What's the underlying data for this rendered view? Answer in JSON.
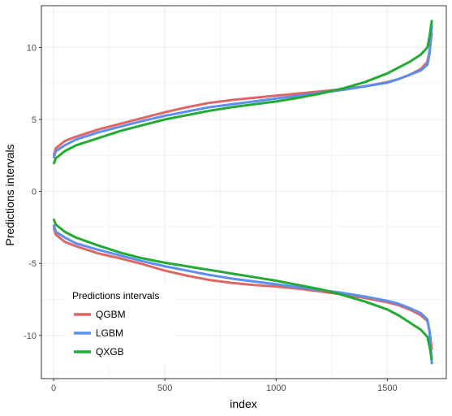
{
  "chart_data": {
    "type": "line",
    "xlabel": "index",
    "ylabel": "Predictions intervals",
    "xlim": [
      -55,
      1765
    ],
    "ylim": [
      -13.0,
      12.9
    ],
    "x_ticks": [
      0,
      500,
      1000,
      1500
    ],
    "x_tick_labels": [
      "0",
      "500",
      "1000",
      "1500"
    ],
    "y_ticks": [
      -10,
      -5,
      0,
      5,
      10
    ],
    "y_tick_labels": [
      "-10",
      "-5",
      "0",
      "5",
      "10"
    ],
    "grid": true,
    "legend": {
      "title": "Predictions intervals",
      "placement": "bottom-left",
      "entries": [
        "QGBM",
        "LGBM",
        "QXGB"
      ]
    },
    "series": [
      {
        "name": "QGBM",
        "color": "#e06666",
        "upper": {
          "x": [
            0,
            10,
            50,
            100,
            200,
            300,
            400,
            500,
            600,
            700,
            800,
            900,
            1000,
            1100,
            1200,
            1300,
            1400,
            1500,
            1550,
            1600,
            1650,
            1680,
            1690,
            1700
          ],
          "y": [
            2.5,
            3.0,
            3.5,
            3.8,
            4.3,
            4.7,
            5.1,
            5.5,
            5.85,
            6.15,
            6.35,
            6.5,
            6.65,
            6.8,
            6.95,
            7.1,
            7.3,
            7.6,
            7.8,
            8.1,
            8.5,
            9.0,
            9.8,
            11.0
          ]
        },
        "lower": {
          "x": [
            0,
            10,
            50,
            100,
            200,
            300,
            400,
            500,
            600,
            700,
            800,
            900,
            1000,
            1100,
            1200,
            1300,
            1400,
            1500,
            1550,
            1600,
            1650,
            1680,
            1690,
            1700
          ],
          "y": [
            -2.5,
            -3.0,
            -3.5,
            -3.8,
            -4.3,
            -4.65,
            -5.05,
            -5.5,
            -5.85,
            -6.15,
            -6.35,
            -6.5,
            -6.6,
            -6.75,
            -6.95,
            -7.15,
            -7.4,
            -7.7,
            -7.9,
            -8.2,
            -8.6,
            -9.0,
            -9.7,
            -11.0
          ]
        }
      },
      {
        "name": "LGBM",
        "color": "#5b8ff0",
        "upper": {
          "x": [
            0,
            10,
            50,
            100,
            200,
            300,
            400,
            500,
            600,
            700,
            800,
            900,
            1000,
            1100,
            1200,
            1300,
            1400,
            1500,
            1550,
            1600,
            1650,
            1680,
            1690,
            1700
          ],
          "y": [
            2.3,
            2.8,
            3.2,
            3.6,
            4.1,
            4.5,
            4.9,
            5.25,
            5.55,
            5.85,
            6.05,
            6.25,
            6.45,
            6.65,
            6.85,
            7.05,
            7.3,
            7.55,
            7.8,
            8.1,
            8.4,
            8.8,
            9.6,
            11.5
          ]
        },
        "lower": {
          "x": [
            0,
            10,
            50,
            100,
            200,
            300,
            400,
            500,
            600,
            700,
            800,
            900,
            1000,
            1100,
            1200,
            1300,
            1400,
            1500,
            1550,
            1600,
            1650,
            1680,
            1690,
            1700
          ],
          "y": [
            -2.3,
            -2.8,
            -3.2,
            -3.6,
            -4.05,
            -4.45,
            -4.85,
            -5.2,
            -5.5,
            -5.8,
            -6.05,
            -6.25,
            -6.45,
            -6.65,
            -6.85,
            -7.05,
            -7.3,
            -7.6,
            -7.8,
            -8.1,
            -8.45,
            -8.9,
            -9.8,
            -12.0
          ]
        }
      },
      {
        "name": "QXGB",
        "color": "#22aa33",
        "upper": {
          "x": [
            0,
            10,
            50,
            100,
            200,
            300,
            400,
            500,
            600,
            700,
            800,
            900,
            1000,
            1100,
            1200,
            1300,
            1400,
            1500,
            1550,
            1600,
            1650,
            1680,
            1690,
            1700
          ],
          "y": [
            1.9,
            2.3,
            2.8,
            3.2,
            3.7,
            4.2,
            4.6,
            5.0,
            5.3,
            5.6,
            5.85,
            6.05,
            6.25,
            6.5,
            6.8,
            7.15,
            7.6,
            8.2,
            8.6,
            9.0,
            9.5,
            10.0,
            10.8,
            11.9
          ]
        },
        "lower": {
          "x": [
            0,
            10,
            50,
            100,
            200,
            300,
            400,
            500,
            600,
            700,
            800,
            900,
            1000,
            1100,
            1200,
            1300,
            1400,
            1500,
            1550,
            1600,
            1650,
            1680,
            1690,
            1700
          ],
          "y": [
            -1.9,
            -2.3,
            -2.8,
            -3.2,
            -3.75,
            -4.25,
            -4.65,
            -4.95,
            -5.2,
            -5.45,
            -5.7,
            -5.95,
            -6.2,
            -6.5,
            -6.8,
            -7.2,
            -7.65,
            -8.2,
            -8.6,
            -9.1,
            -9.6,
            -10.1,
            -10.8,
            -11.7
          ]
        }
      }
    ]
  }
}
